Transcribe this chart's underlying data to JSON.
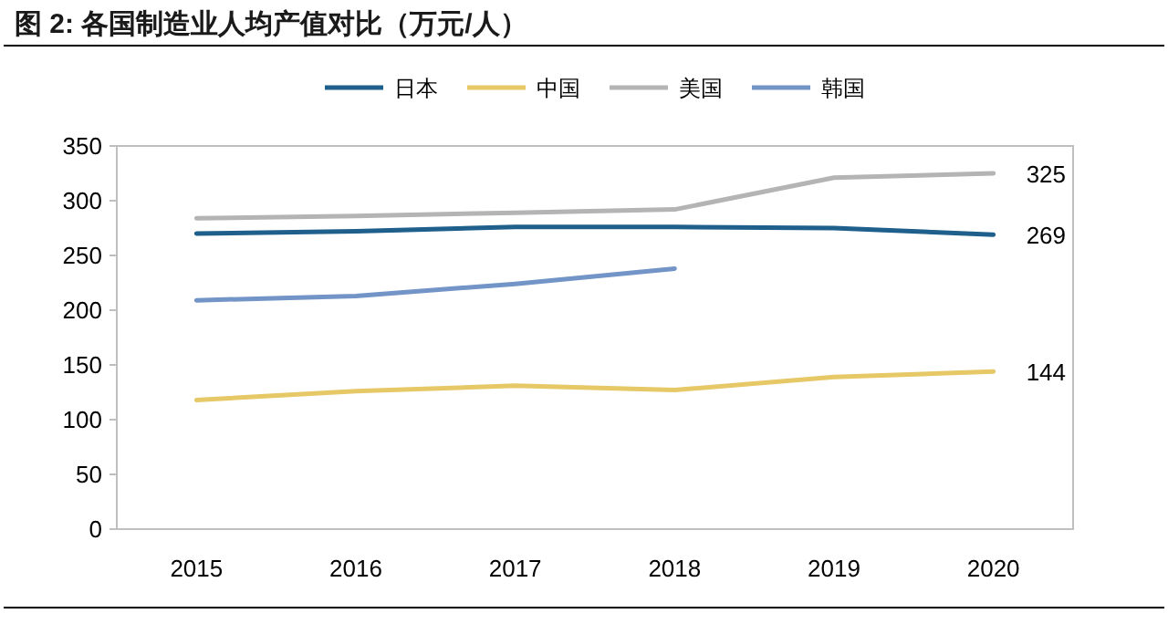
{
  "chart_data": {
    "type": "line",
    "title": "图 2:  各国制造业人均产值对比（万元/人）",
    "categories": [
      "2015",
      "2016",
      "2017",
      "2018",
      "2019",
      "2020"
    ],
    "series": [
      {
        "name": "日本",
        "color": "#1f5f8b",
        "values": [
          270,
          272,
          276,
          276,
          275,
          269
        ],
        "value_labels": [
          null,
          null,
          null,
          null,
          null,
          "269"
        ]
      },
      {
        "name": "中国",
        "color": "#e6c866",
        "values": [
          118,
          126,
          131,
          127,
          139,
          144
        ],
        "value_labels": [
          null,
          null,
          null,
          null,
          null,
          "144"
        ]
      },
      {
        "name": "美国",
        "color": "#b4b4b4",
        "values": [
          284,
          286,
          289,
          292,
          321,
          325
        ],
        "value_labels": [
          null,
          null,
          null,
          null,
          null,
          "325"
        ]
      },
      {
        "name": "韩国",
        "color": "#7394c6",
        "values": [
          209,
          213,
          224,
          238,
          null,
          null
        ],
        "value_labels": [
          null,
          null,
          null,
          null,
          null,
          null
        ]
      }
    ],
    "ylim": [
      0,
      350
    ],
    "yticks": [
      0,
      50,
      100,
      150,
      200,
      250,
      300,
      350
    ],
    "grid": false,
    "legend": "top",
    "marker": "none",
    "line_style": "solid"
  }
}
